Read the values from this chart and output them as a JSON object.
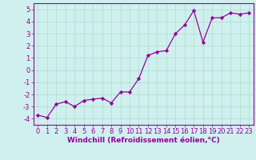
{
  "x": [
    0,
    1,
    2,
    3,
    4,
    5,
    6,
    7,
    8,
    9,
    10,
    11,
    12,
    13,
    14,
    15,
    16,
    17,
    18,
    19,
    20,
    21,
    22,
    23
  ],
  "y": [
    -3.7,
    -3.9,
    -2.8,
    -2.6,
    -3.0,
    -2.5,
    -2.4,
    -2.3,
    -2.7,
    -1.8,
    -1.8,
    -0.7,
    1.2,
    1.5,
    1.6,
    3.0,
    3.7,
    4.9,
    2.3,
    4.3,
    4.3,
    4.7,
    4.6,
    4.7
  ],
  "line_color": "#990099",
  "marker": "D",
  "marker_size": 2.2,
  "linewidth": 0.9,
  "xlabel": "Windchill (Refroidissement éolien,°C)",
  "xlim": [
    -0.5,
    23.5
  ],
  "ylim": [
    -4.5,
    5.5
  ],
  "yticks": [
    -4,
    -3,
    -2,
    -1,
    0,
    1,
    2,
    3,
    4,
    5
  ],
  "xticks": [
    0,
    1,
    2,
    3,
    4,
    5,
    6,
    7,
    8,
    9,
    10,
    11,
    12,
    13,
    14,
    15,
    16,
    17,
    18,
    19,
    20,
    21,
    22,
    23
  ],
  "bg_color": "#cff0ee",
  "grid_color": "#aaddcc",
  "font_color": "#990099",
  "font_size": 6.0,
  "xlabel_fontsize": 6.5
}
